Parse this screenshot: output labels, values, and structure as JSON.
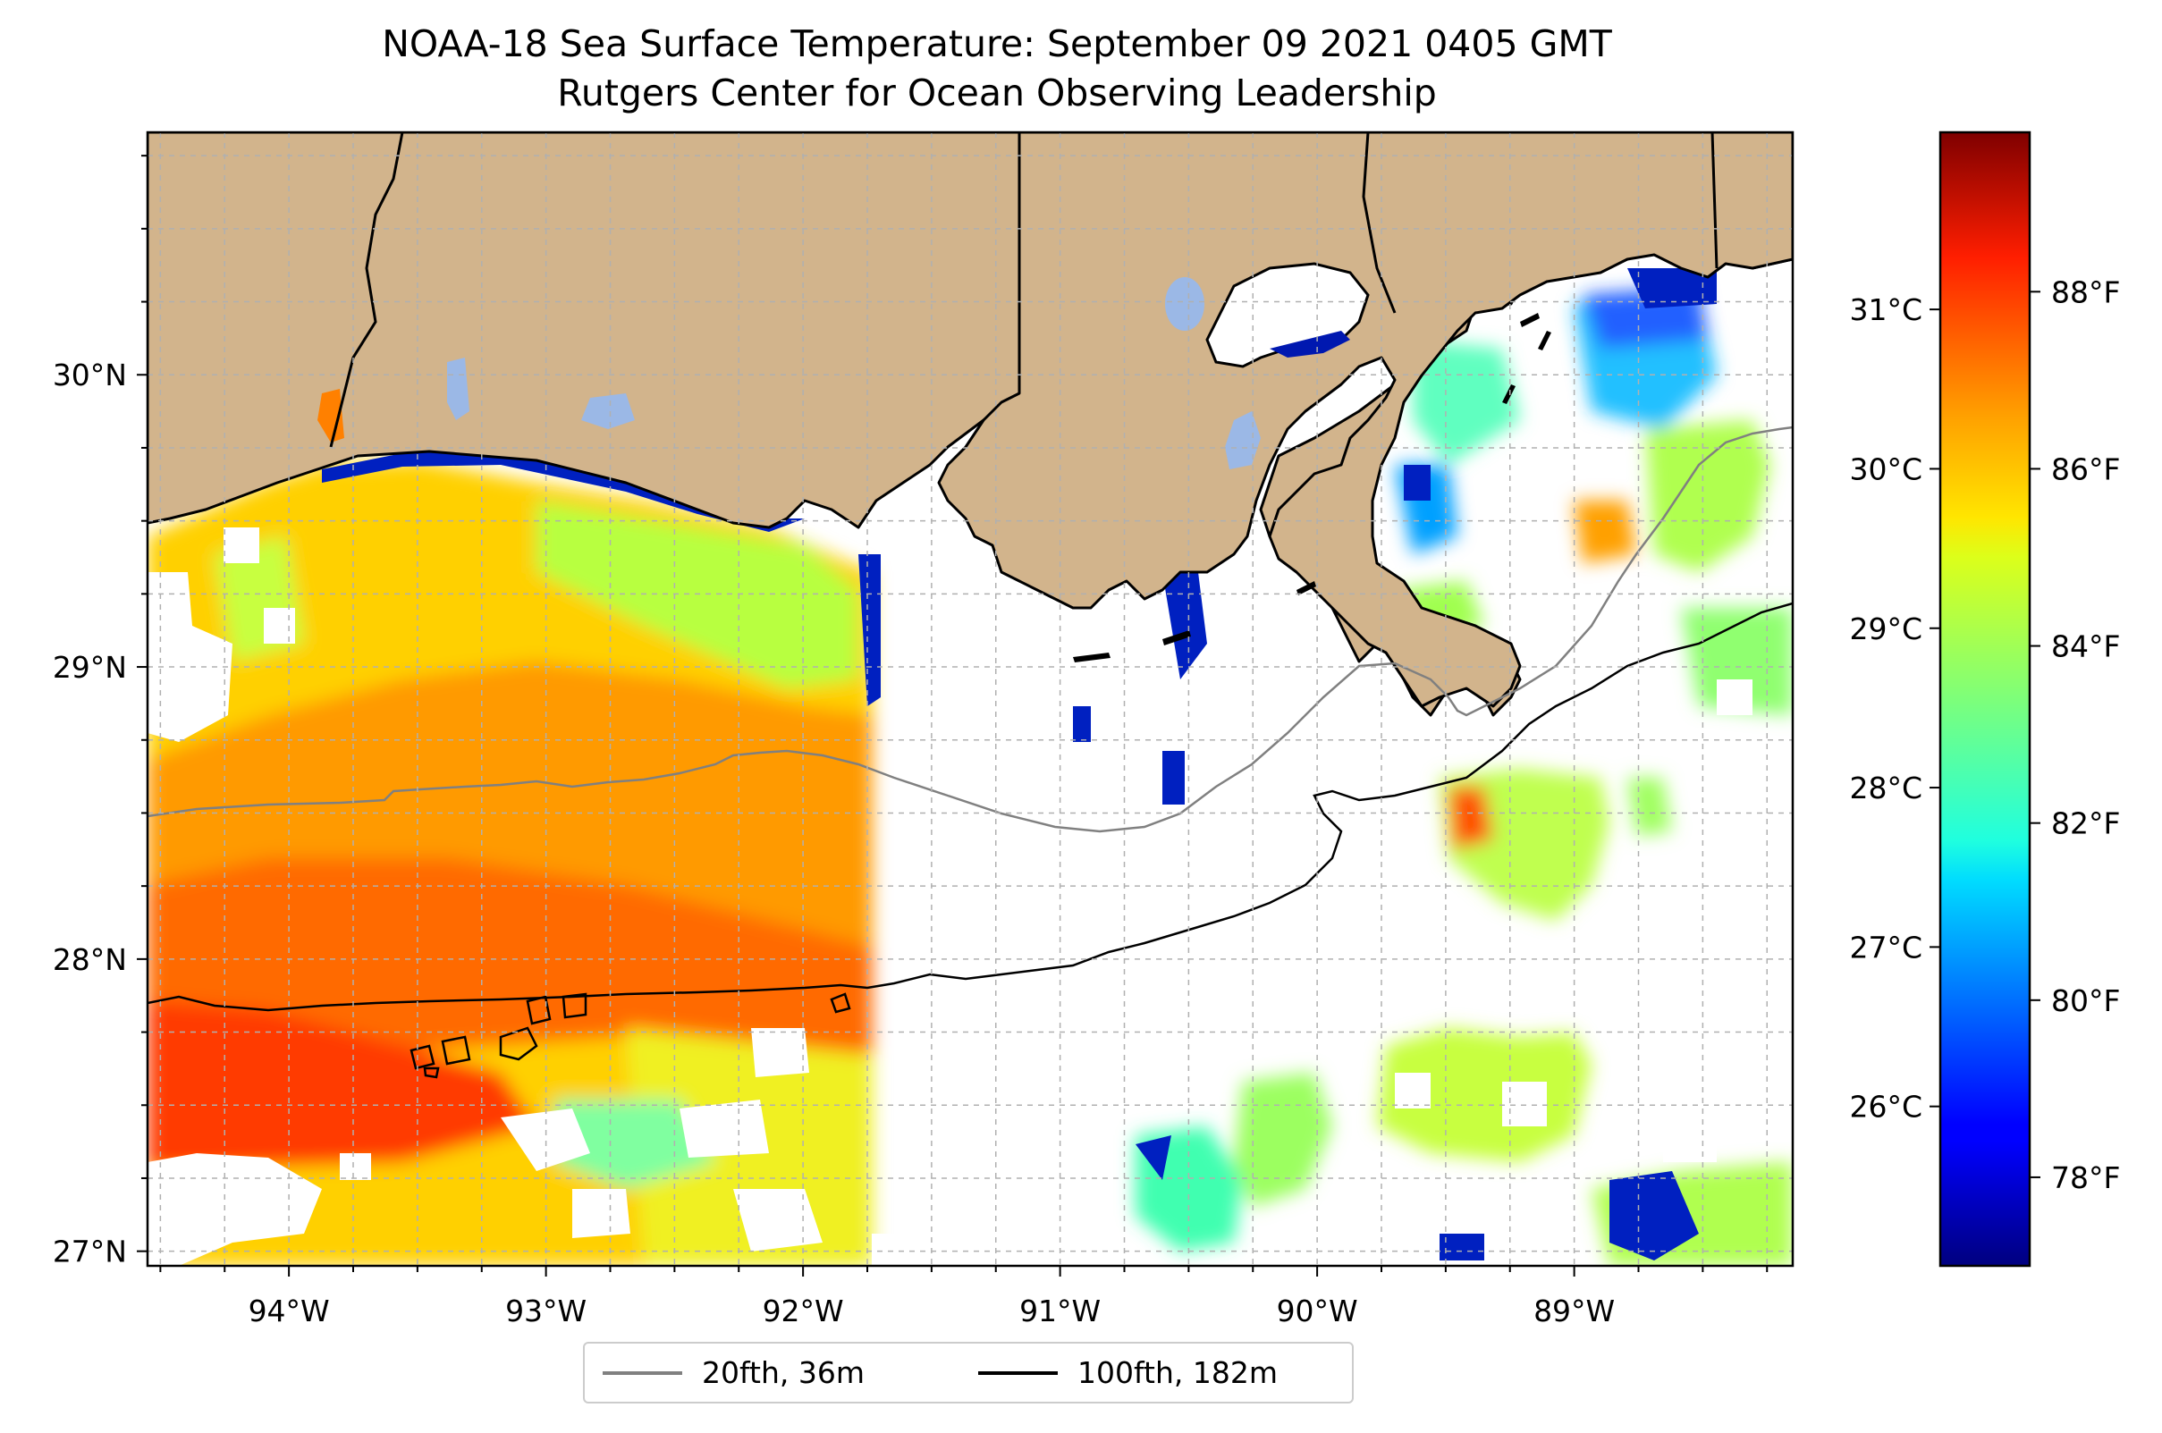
{
  "title": "NOAA-18 Sea Surface Temperature: September 09 2021 0405 GMT",
  "subtitle": "Rutgers Center for Ocean Observing Leadership",
  "map": {
    "lon_range": [
      -94.55,
      -88.15
    ],
    "lat_range": [
      26.95,
      30.83
    ],
    "lon_ticks": [
      "94°W",
      "93°W",
      "92°W",
      "91°W",
      "90°W",
      "89°W"
    ],
    "lon_tick_values": [
      -94,
      -93,
      -92,
      -91,
      -90,
      -89
    ],
    "lat_ticks": [
      "27°N",
      "28°N",
      "29°N",
      "30°N"
    ],
    "lat_tick_values": [
      27,
      28,
      29,
      30
    ],
    "gridlines": true,
    "land_color": "#d2b48c",
    "water_body_color": "#9bb8e6"
  },
  "colorbar": {
    "colormap": "jet",
    "range_f": [
      77.0,
      89.8
    ],
    "fahrenheit_ticks": [
      "78°F",
      "80°F",
      "82°F",
      "84°F",
      "86°F",
      "88°F"
    ],
    "fahrenheit_values": [
      78,
      80,
      82,
      84,
      86,
      88
    ],
    "celsius_ticks": [
      "26°C",
      "27°C",
      "28°C",
      "29°C",
      "30°C",
      "31°C"
    ],
    "celsius_values": [
      26,
      27,
      28,
      29,
      30,
      31
    ]
  },
  "legend": {
    "items": [
      {
        "label": "20fth, 36m",
        "color": "#808080"
      },
      {
        "label": "100fth, 182m",
        "color": "#000000"
      }
    ]
  }
}
